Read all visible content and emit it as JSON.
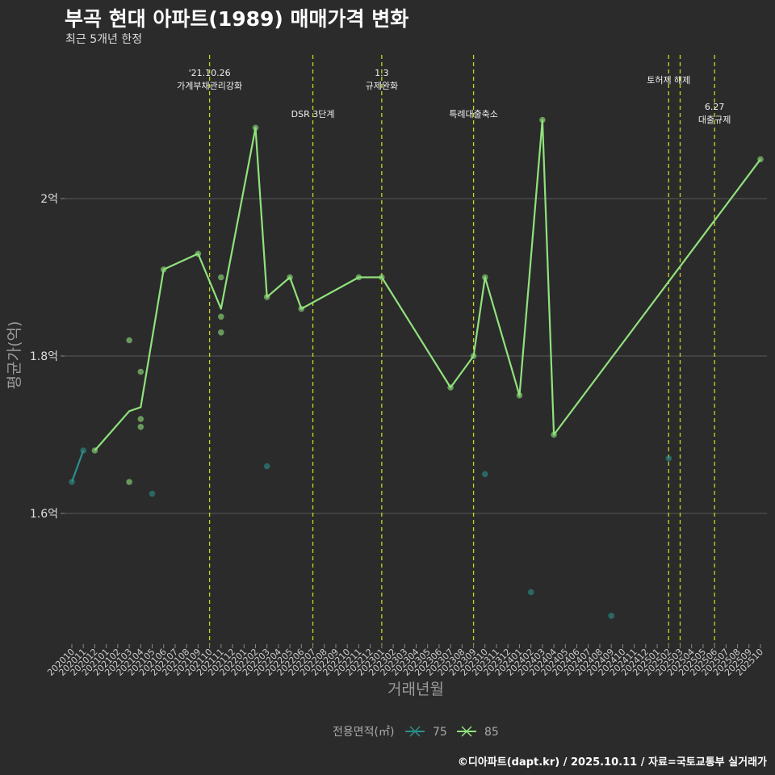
{
  "header": {
    "title": "부곡 현대 아파트(1989) 매매가격 변화",
    "subtitle": "최근 5개년 한정"
  },
  "caption": "©디아파트(dapt.kr) / 2025.10.11 / 자료=국토교통부 실거래가",
  "colors": {
    "background": "#2b2b2b",
    "grid": "#5a5a5a",
    "series_75": "#2b8f8c",
    "series_85": "#90e27c",
    "event_line": "#c8d41e"
  },
  "chart_data": {
    "type": "line",
    "title": "부곡 현대 아파트(1989) 매매가격 변화",
    "subtitle": "최근 5개년 한정",
    "xlabel": "거래년월",
    "ylabel": "평균가(억)",
    "ylim": [
      1.43,
      2.2
    ],
    "yticks": [
      1.6,
      1.8,
      2.0
    ],
    "ytick_labels": [
      "1.6억",
      "1.8억",
      "2억"
    ],
    "grid": true,
    "categories": [
      "202010",
      "202011",
      "202012",
      "202101",
      "202102",
      "202103",
      "202104",
      "202105",
      "202106",
      "202107",
      "202108",
      "202109",
      "202110",
      "202111",
      "202112",
      "202201",
      "202202",
      "202203",
      "202204",
      "202205",
      "202206",
      "202207",
      "202208",
      "202209",
      "202210",
      "202211",
      "202212",
      "202301",
      "202302",
      "202303",
      "202304",
      "202305",
      "202306",
      "202307",
      "202308",
      "202309",
      "202310",
      "202311",
      "202312",
      "202401",
      "202402",
      "202403",
      "202404",
      "202405",
      "202406",
      "202407",
      "202408",
      "202409",
      "202410",
      "202411",
      "202412",
      "202501",
      "202502",
      "202503",
      "202504",
      "202505",
      "202506",
      "202507",
      "202508",
      "202509",
      "202510"
    ],
    "legend": {
      "title": "전용면적(㎡)",
      "entries": [
        "75",
        "85"
      ],
      "position": "bottom"
    },
    "series": [
      {
        "name": "75",
        "line": [
          [
            "202010",
            1.64
          ],
          [
            "202011",
            1.68
          ]
        ],
        "points": [
          [
            "202010",
            1.64
          ],
          [
            "202011",
            1.68
          ],
          [
            "202105",
            1.625
          ],
          [
            "202203",
            1.66
          ],
          [
            "202310",
            1.65
          ],
          [
            "202402",
            1.5
          ],
          [
            "202409",
            1.47
          ],
          [
            "202502",
            1.67
          ]
        ]
      },
      {
        "name": "85",
        "line": [
          [
            "202012",
            1.68
          ],
          [
            "202103",
            1.73
          ],
          [
            "202104",
            1.735
          ],
          [
            "202106",
            1.91
          ],
          [
            "202109",
            1.93
          ],
          [
            "202111",
            1.86
          ],
          [
            "202202",
            2.09
          ],
          [
            "202203",
            1.875
          ],
          [
            "202205",
            1.9
          ],
          [
            "202206",
            1.86
          ],
          [
            "202211",
            1.9
          ],
          [
            "202301",
            1.9
          ],
          [
            "202307",
            1.76
          ],
          [
            "202309",
            1.8
          ],
          [
            "202310",
            1.9
          ],
          [
            "202401",
            1.75
          ],
          [
            "202403",
            2.1
          ],
          [
            "202404",
            1.7
          ],
          [
            "202510",
            2.05
          ]
        ],
        "points": [
          [
            "202012",
            1.68
          ],
          [
            "202103",
            1.82
          ],
          [
            "202103",
            1.64
          ],
          [
            "202104",
            1.78
          ],
          [
            "202104",
            1.72
          ],
          [
            "202104",
            1.71
          ],
          [
            "202106",
            1.91
          ],
          [
            "202109",
            1.93
          ],
          [
            "202111",
            1.9
          ],
          [
            "202111",
            1.85
          ],
          [
            "202111",
            1.83
          ],
          [
            "202202",
            2.09
          ],
          [
            "202203",
            1.875
          ],
          [
            "202205",
            1.9
          ],
          [
            "202206",
            1.86
          ],
          [
            "202211",
            1.9
          ],
          [
            "202301",
            1.9
          ],
          [
            "202307",
            1.76
          ],
          [
            "202309",
            1.8
          ],
          [
            "202310",
            1.9
          ],
          [
            "202401",
            1.75
          ],
          [
            "202403",
            2.1
          ],
          [
            "202404",
            1.7
          ],
          [
            "202510",
            2.05
          ]
        ]
      }
    ],
    "events": [
      {
        "x": "202110",
        "lines": [
          "'21.10.26",
          "가계부채관리강화"
        ],
        "row": 0
      },
      {
        "x": "202207",
        "lines": [
          "DSR 3단계"
        ],
        "row": 1
      },
      {
        "x": "202301",
        "lines": [
          "1.3",
          "규제완화"
        ],
        "row": 0
      },
      {
        "x": "202309",
        "lines": [
          "특례대출축소"
        ],
        "row": 1
      },
      {
        "x": "202502",
        "lines": [
          "토허제 해제"
        ],
        "row": 0
      },
      {
        "x": "202503",
        "lines": [],
        "row": 0
      },
      {
        "x": "202506",
        "lines": [
          "6.27",
          "대출규제"
        ],
        "row": 1
      }
    ]
  }
}
